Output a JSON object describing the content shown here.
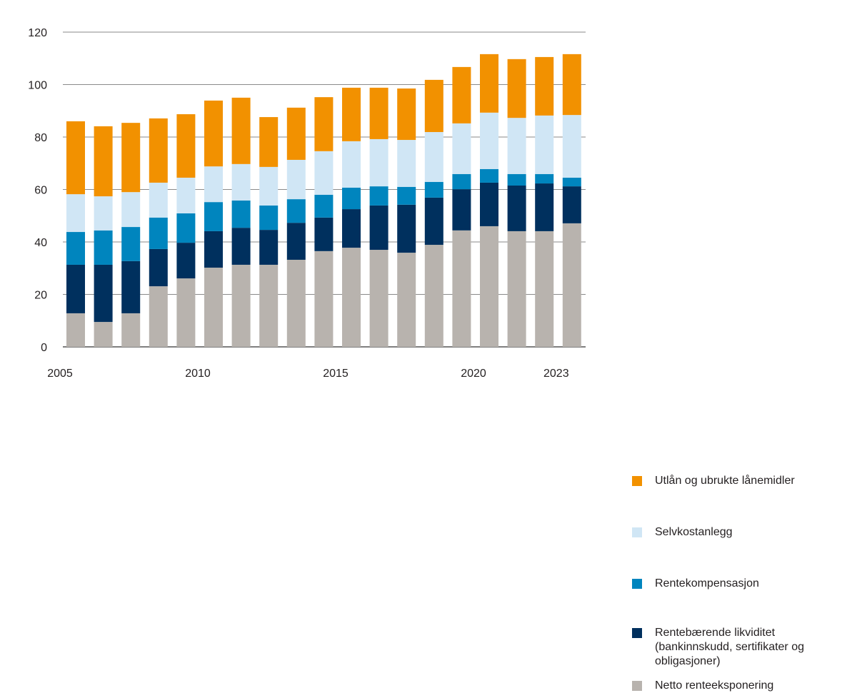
{
  "chart_data": {
    "type": "stacked-bar",
    "categories": [
      "2005",
      "2006",
      "2007",
      "2008",
      "2009",
      "2010",
      "2011",
      "2012",
      "2013",
      "2014",
      "2015",
      "2016",
      "2017",
      "2018",
      "2019",
      "2020",
      "2021",
      "2022",
      "2023"
    ],
    "x_tick_labels": [
      "2005",
      "2010",
      "2015",
      "2020",
      "2023"
    ],
    "ylim": [
      0,
      120
    ],
    "y_ticks": [
      0,
      20,
      40,
      60,
      80,
      100,
      120
    ],
    "grid": true,
    "legend_placement": "right",
    "series": [
      {
        "name": "Netto renteeksponering",
        "color": "#b8b3ae",
        "values": [
          12.8,
          9.5,
          12.8,
          23.1,
          26.1,
          30.2,
          31.3,
          31.3,
          33.2,
          36.5,
          37.8,
          37.0,
          35.9,
          38.9,
          44.4,
          46.0,
          44.1,
          44.1,
          47.1
        ]
      },
      {
        "name": "Rentebærende likviditet (bankinnskudd, sertifikater og obligasjoner)",
        "color": "#00305e",
        "values": [
          18.5,
          21.8,
          19.9,
          14.2,
          13.6,
          13.9,
          14.1,
          13.3,
          14.1,
          12.8,
          14.7,
          16.9,
          18.3,
          18.0,
          15.7,
          16.6,
          17.4,
          18.2,
          14.1
        ]
      },
      {
        "name": "Rentekompensasjon",
        "color": "#0085be",
        "values": [
          12.5,
          13.1,
          13.0,
          12.0,
          11.2,
          11.1,
          10.4,
          9.3,
          9.0,
          8.7,
          8.2,
          7.3,
          6.8,
          6.0,
          5.8,
          5.2,
          4.4,
          3.6,
          3.3
        ]
      },
      {
        "name": "Selvkostanlegg",
        "color": "#d0e6f5",
        "values": [
          14.4,
          13.0,
          13.3,
          13.3,
          13.6,
          13.6,
          13.9,
          14.7,
          15.0,
          16.6,
          17.7,
          18.0,
          17.9,
          19.0,
          19.3,
          21.5,
          21.4,
          22.3,
          23.9
        ]
      },
      {
        "name": "Utlån og ubrukte lånemidler",
        "color": "#f29100",
        "values": [
          27.8,
          26.7,
          26.4,
          24.5,
          24.2,
          25.1,
          25.3,
          19.0,
          19.9,
          20.6,
          20.4,
          19.6,
          19.6,
          19.9,
          21.5,
          22.3,
          22.4,
          22.3,
          23.2
        ]
      }
    ]
  }
}
